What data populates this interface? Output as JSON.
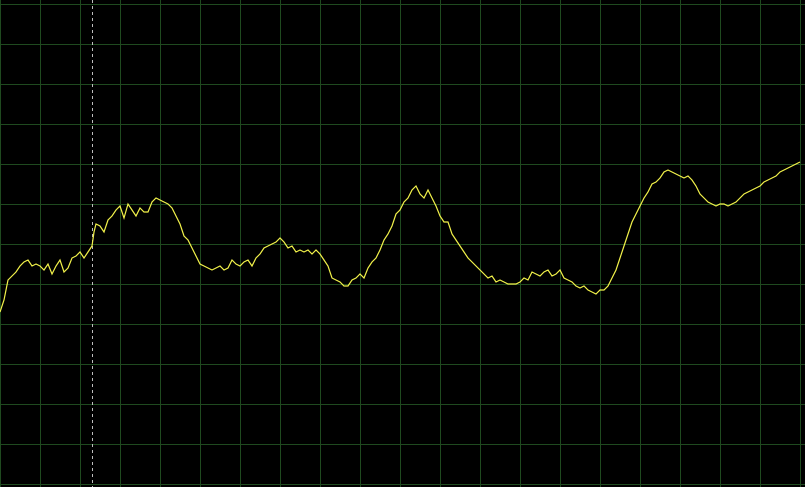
{
  "colors": {
    "background": "#000000",
    "grid": "#1f4a1f",
    "trace": "#f2f24a",
    "cursor": "#bdbdbd"
  },
  "chart_data": {
    "type": "line",
    "title": "",
    "xlabel": "",
    "ylabel": "",
    "grid": true,
    "grid_divisions": {
      "x": 20,
      "y": 12
    },
    "xlim": [
      0,
      20
    ],
    "ylim": [
      0,
      12
    ],
    "cursor_x": 2.3,
    "series": [
      {
        "name": "",
        "points": [
          [
            0.0,
            4.2
          ],
          [
            0.1,
            4.5
          ],
          [
            0.2,
            5.0
          ],
          [
            0.3,
            5.1
          ],
          [
            0.4,
            5.2
          ],
          [
            0.5,
            5.35
          ],
          [
            0.6,
            5.45
          ],
          [
            0.7,
            5.5
          ],
          [
            0.8,
            5.35
          ],
          [
            0.9,
            5.4
          ],
          [
            1.0,
            5.35
          ],
          [
            1.1,
            5.25
          ],
          [
            1.2,
            5.4
          ],
          [
            1.3,
            5.15
          ],
          [
            1.4,
            5.35
          ],
          [
            1.5,
            5.5
          ],
          [
            1.6,
            5.2
          ],
          [
            1.7,
            5.3
          ],
          [
            1.8,
            5.55
          ],
          [
            1.9,
            5.6
          ],
          [
            2.0,
            5.7
          ],
          [
            2.1,
            5.55
          ],
          [
            2.2,
            5.7
          ],
          [
            2.3,
            5.85
          ],
          [
            2.35,
            6.2
          ],
          [
            2.4,
            6.4
          ],
          [
            2.5,
            6.35
          ],
          [
            2.6,
            6.2
          ],
          [
            2.7,
            6.5
          ],
          [
            2.8,
            6.6
          ],
          [
            2.9,
            6.75
          ],
          [
            3.0,
            6.85
          ],
          [
            3.1,
            6.55
          ],
          [
            3.2,
            6.9
          ],
          [
            3.3,
            6.75
          ],
          [
            3.4,
            6.6
          ],
          [
            3.5,
            6.8
          ],
          [
            3.6,
            6.7
          ],
          [
            3.7,
            6.7
          ],
          [
            3.8,
            6.95
          ],
          [
            3.9,
            7.05
          ],
          [
            4.0,
            7.0
          ],
          [
            4.1,
            6.95
          ],
          [
            4.2,
            6.9
          ],
          [
            4.3,
            6.8
          ],
          [
            4.4,
            6.6
          ],
          [
            4.5,
            6.4
          ],
          [
            4.6,
            6.1
          ],
          [
            4.7,
            6.0
          ],
          [
            4.8,
            5.8
          ],
          [
            4.9,
            5.6
          ],
          [
            5.0,
            5.4
          ],
          [
            5.1,
            5.35
          ],
          [
            5.2,
            5.3
          ],
          [
            5.3,
            5.25
          ],
          [
            5.4,
            5.3
          ],
          [
            5.5,
            5.35
          ],
          [
            5.6,
            5.25
          ],
          [
            5.7,
            5.3
          ],
          [
            5.8,
            5.5
          ],
          [
            5.9,
            5.4
          ],
          [
            6.0,
            5.35
          ],
          [
            6.1,
            5.45
          ],
          [
            6.2,
            5.5
          ],
          [
            6.3,
            5.35
          ],
          [
            6.4,
            5.55
          ],
          [
            6.5,
            5.65
          ],
          [
            6.6,
            5.8
          ],
          [
            6.7,
            5.85
          ],
          [
            6.8,
            5.9
          ],
          [
            6.9,
            5.95
          ],
          [
            7.0,
            6.05
          ],
          [
            7.1,
            5.95
          ],
          [
            7.2,
            5.8
          ],
          [
            7.3,
            5.85
          ],
          [
            7.4,
            5.7
          ],
          [
            7.5,
            5.75
          ],
          [
            7.6,
            5.7
          ],
          [
            7.7,
            5.75
          ],
          [
            7.8,
            5.65
          ],
          [
            7.9,
            5.75
          ],
          [
            8.0,
            5.65
          ],
          [
            8.1,
            5.5
          ],
          [
            8.2,
            5.35
          ],
          [
            8.3,
            5.05
          ],
          [
            8.4,
            5.0
          ],
          [
            8.5,
            4.95
          ],
          [
            8.6,
            4.85
          ],
          [
            8.7,
            4.85
          ],
          [
            8.8,
            5.0
          ],
          [
            8.9,
            5.05
          ],
          [
            9.0,
            5.15
          ],
          [
            9.1,
            5.05
          ],
          [
            9.2,
            5.3
          ],
          [
            9.3,
            5.45
          ],
          [
            9.4,
            5.55
          ],
          [
            9.5,
            5.75
          ],
          [
            9.6,
            6.0
          ],
          [
            9.7,
            6.15
          ],
          [
            9.8,
            6.35
          ],
          [
            9.9,
            6.65
          ],
          [
            10.0,
            6.75
          ],
          [
            10.1,
            6.95
          ],
          [
            10.2,
            7.05
          ],
          [
            10.3,
            7.25
          ],
          [
            10.4,
            7.35
          ],
          [
            10.5,
            7.15
          ],
          [
            10.6,
            7.05
          ],
          [
            10.7,
            7.25
          ],
          [
            10.8,
            7.05
          ],
          [
            10.9,
            6.85
          ],
          [
            11.0,
            6.6
          ],
          [
            11.1,
            6.45
          ],
          [
            11.2,
            6.45
          ],
          [
            11.3,
            6.15
          ],
          [
            11.4,
            6.0
          ],
          [
            11.5,
            5.85
          ],
          [
            11.6,
            5.7
          ],
          [
            11.7,
            5.55
          ],
          [
            11.8,
            5.45
          ],
          [
            11.9,
            5.35
          ],
          [
            12.0,
            5.25
          ],
          [
            12.1,
            5.15
          ],
          [
            12.2,
            5.05
          ],
          [
            12.3,
            5.1
          ],
          [
            12.4,
            4.95
          ],
          [
            12.5,
            5.0
          ],
          [
            12.6,
            4.95
          ],
          [
            12.7,
            4.9
          ],
          [
            12.8,
            4.9
          ],
          [
            12.9,
            4.9
          ],
          [
            13.0,
            4.95
          ],
          [
            13.1,
            5.05
          ],
          [
            13.2,
            5.0
          ],
          [
            13.3,
            5.2
          ],
          [
            13.4,
            5.15
          ],
          [
            13.5,
            5.1
          ],
          [
            13.6,
            5.2
          ],
          [
            13.7,
            5.25
          ],
          [
            13.8,
            5.1
          ],
          [
            13.9,
            5.15
          ],
          [
            14.0,
            5.25
          ],
          [
            14.1,
            5.05
          ],
          [
            14.2,
            5.0
          ],
          [
            14.3,
            4.95
          ],
          [
            14.4,
            4.85
          ],
          [
            14.5,
            4.8
          ],
          [
            14.6,
            4.85
          ],
          [
            14.7,
            4.75
          ],
          [
            14.8,
            4.7
          ],
          [
            14.9,
            4.65
          ],
          [
            15.0,
            4.75
          ],
          [
            15.1,
            4.75
          ],
          [
            15.2,
            4.85
          ],
          [
            15.3,
            5.05
          ],
          [
            15.4,
            5.25
          ],
          [
            15.5,
            5.55
          ],
          [
            15.6,
            5.85
          ],
          [
            15.7,
            6.15
          ],
          [
            15.8,
            6.45
          ],
          [
            15.9,
            6.65
          ],
          [
            16.0,
            6.85
          ],
          [
            16.1,
            7.05
          ],
          [
            16.2,
            7.2
          ],
          [
            16.3,
            7.4
          ],
          [
            16.4,
            7.45
          ],
          [
            16.5,
            7.55
          ],
          [
            16.6,
            7.7
          ],
          [
            16.7,
            7.75
          ],
          [
            16.8,
            7.7
          ],
          [
            16.9,
            7.65
          ],
          [
            17.0,
            7.6
          ],
          [
            17.1,
            7.55
          ],
          [
            17.2,
            7.6
          ],
          [
            17.3,
            7.5
          ],
          [
            17.4,
            7.35
          ],
          [
            17.5,
            7.15
          ],
          [
            17.6,
            7.05
          ],
          [
            17.7,
            6.95
          ],
          [
            17.8,
            6.9
          ],
          [
            17.9,
            6.85
          ],
          [
            18.0,
            6.9
          ],
          [
            18.1,
            6.9
          ],
          [
            18.2,
            6.85
          ],
          [
            18.3,
            6.9
          ],
          [
            18.4,
            6.95
          ],
          [
            18.5,
            7.05
          ],
          [
            18.6,
            7.15
          ],
          [
            18.7,
            7.2
          ],
          [
            18.8,
            7.25
          ],
          [
            18.9,
            7.3
          ],
          [
            19.0,
            7.35
          ],
          [
            19.1,
            7.45
          ],
          [
            19.2,
            7.5
          ],
          [
            19.3,
            7.55
          ],
          [
            19.4,
            7.6
          ],
          [
            19.5,
            7.7
          ],
          [
            19.6,
            7.75
          ],
          [
            19.7,
            7.8
          ],
          [
            19.8,
            7.85
          ],
          [
            19.9,
            7.9
          ],
          [
            20.0,
            7.95
          ]
        ]
      }
    ]
  }
}
